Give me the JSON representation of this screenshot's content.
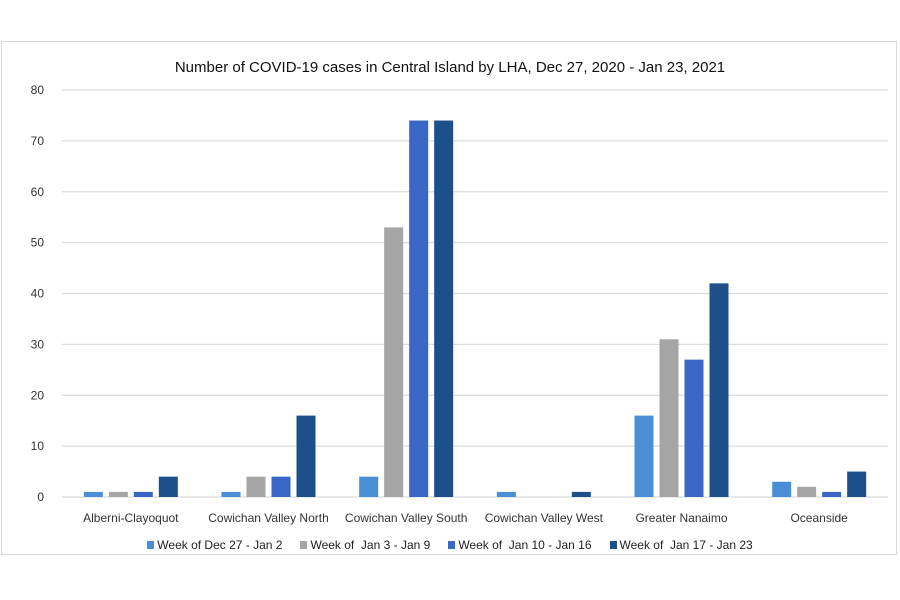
{
  "chart_data": {
    "type": "bar",
    "title": "Number of COVID-19 cases in Central Island by LHA, Dec 27, 2020 - Jan 23, 2021",
    "xlabel": "",
    "ylabel": "",
    "ylim": [
      0,
      80
    ],
    "yticks": [
      0,
      10,
      20,
      30,
      40,
      50,
      60,
      70,
      80
    ],
    "grid": true,
    "legend_position": "bottom",
    "categories": [
      "Alberni-Clayoquot",
      "Cowichan Valley North",
      "Cowichan Valley South",
      "Cowichan Valley West",
      "Greater Nanaimo",
      "Oceanside"
    ],
    "series": [
      {
        "name": "Week of Dec 27 - Jan 2",
        "color": "#4a8fd6",
        "values": [
          1,
          1,
          4,
          1,
          16,
          3
        ]
      },
      {
        "name": "Week of  Jan 3 - Jan 9",
        "color": "#a5a5a5",
        "values": [
          1,
          4,
          53,
          0,
          31,
          2
        ]
      },
      {
        "name": "Week of  Jan 10 - Jan 16",
        "color": "#3a67c6",
        "values": [
          1,
          4,
          74,
          0,
          27,
          1
        ]
      },
      {
        "name": "Week of  Jan 17 - Jan 23",
        "color": "#1d4f8a",
        "values": [
          4,
          16,
          74,
          1,
          42,
          5
        ]
      }
    ]
  }
}
